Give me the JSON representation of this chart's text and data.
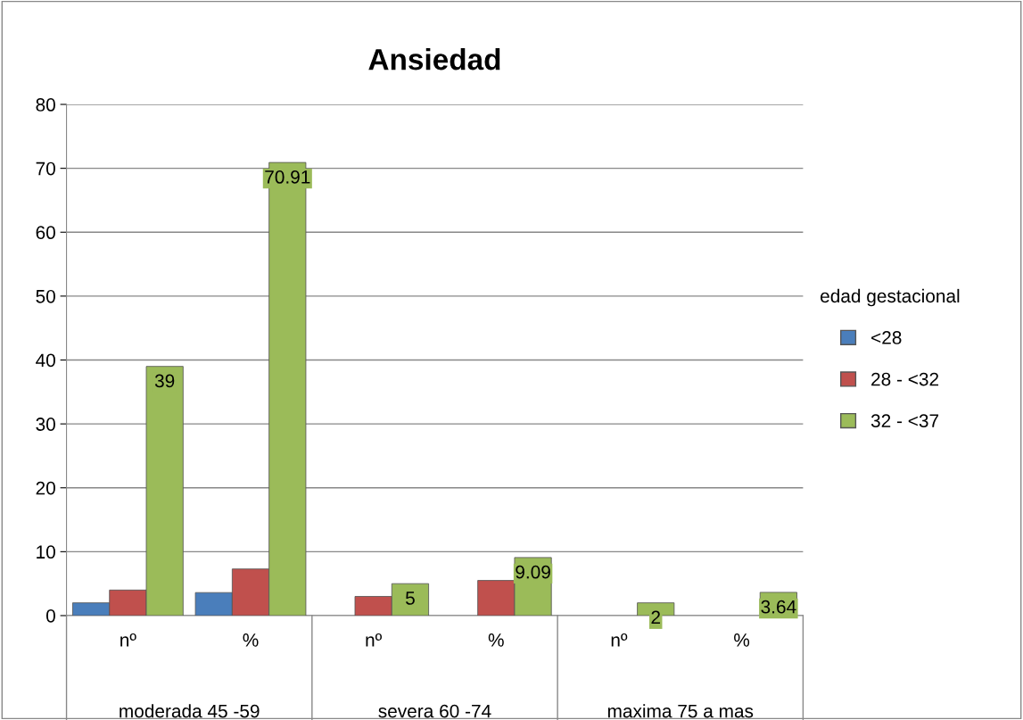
{
  "chart_data": {
    "type": "bar",
    "title": "Ansiedad",
    "legend_title": "edad gestacional",
    "categories": [
      "nº",
      "%",
      "nº",
      "%",
      "nº",
      "%"
    ],
    "series": [
      {
        "name": "<28",
        "color": "#4a7ebb",
        "values": [
          2,
          3.6,
          null,
          null,
          null,
          null
        ]
      },
      {
        "name": "28 - <32",
        "color": "#c0504d",
        "values": [
          4,
          7.3,
          3,
          5.5,
          null,
          null
        ]
      },
      {
        "name": "32 - <37",
        "color": "#9bbb59",
        "values": [
          39,
          70.91,
          5,
          9.09,
          2,
          3.64
        ],
        "value_labels": [
          "39",
          "70.91",
          "5",
          "9.09",
          "2",
          "3.64"
        ]
      }
    ],
    "annotations": [
      "moderada 45 -59",
      "severa 60 -74",
      "maxima 75 a mas"
    ],
    "ylim": [
      0,
      80
    ],
    "yticks": [
      0,
      10,
      20,
      30,
      40,
      50,
      60,
      70,
      80
    ],
    "grid": "y",
    "legend": "right"
  }
}
